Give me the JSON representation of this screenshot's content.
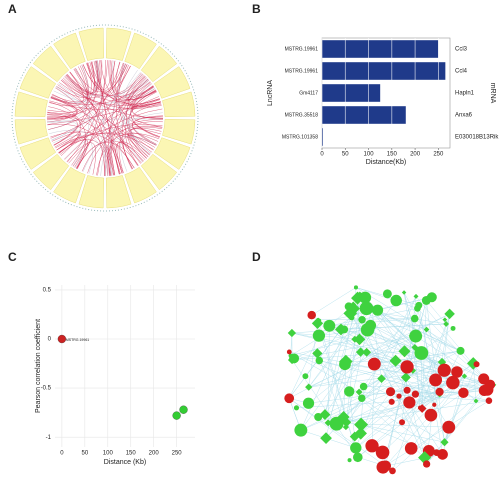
{
  "panel_labels": [
    "A",
    "B",
    "C",
    "D"
  ],
  "chart_data": [
    {
      "type": "barh",
      "y_left_label": "LncRNA",
      "y_right_label": "mRNA",
      "xlabel": "Distance(Kb)",
      "categories": [
        "MSTRG.19961",
        "MSTRG.19961",
        "Gm4117",
        "MSTRG.35518",
        "MSTRG.101358"
      ],
      "right_categories": [
        "Ccl3",
        "Ccl4",
        "Hapln1",
        "Anxa6",
        "E030018B13Rik"
      ],
      "values": [
        250,
        265,
        125,
        180,
        2
      ],
      "color": "#1f3a8a",
      "xlim": [
        0,
        275
      ],
      "xticks": [
        0,
        50,
        100,
        150,
        200,
        250
      ],
      "grid": true
    },
    {
      "type": "scatter",
      "xlabel": "Distance (Kb)",
      "ylabel": "Pearson correlation coefficient",
      "x": [
        0,
        250,
        265
      ],
      "values": [
        0,
        -0.78,
        -0.72
      ],
      "colors": [
        "#cc2222",
        "#33cc33",
        "#33cc33"
      ],
      "labels": [
        "MSTRG.19961",
        null,
        null
      ],
      "xlim": [
        -15,
        290
      ],
      "ylim": [
        -1.1,
        0.55
      ],
      "xticks": [
        0,
        50,
        100,
        150,
        200,
        250
      ],
      "yticks": [
        -1,
        -0.5,
        0,
        0.5
      ],
      "grid": true
    }
  ]
}
